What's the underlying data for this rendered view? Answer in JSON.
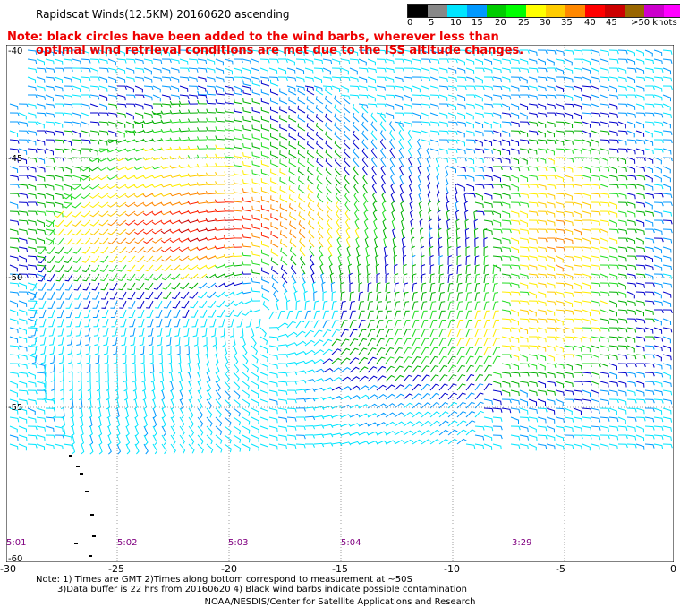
{
  "title": "Rapidscat Winds(12.5KM) 20160620 ascending",
  "note_lines": [
    "Note: black circles have been added to the wind barbs, wherever less than",
    "optimal wind retrieval conditions are met due to the ISS altitude changes."
  ],
  "colorbar": {
    "colors": [
      "#000000",
      "#888888",
      "#00e5ff",
      "#0099ff",
      "#00cc00",
      "#00ff00",
      "#ffff00",
      "#ffcc00",
      "#ff8800",
      "#ff0000",
      "#cc0000",
      "#996600",
      "#cc00cc",
      "#ff00ff",
      "#8800cc"
    ],
    "labels": [
      "0",
      "5",
      "10",
      "15",
      "20",
      "25",
      "30",
      "35",
      "40",
      "45",
      ">50 knots"
    ]
  },
  "lat_labels": [
    "-40",
    "-45",
    "-50",
    "-55",
    "-60"
  ],
  "lon_labels": [
    "-30",
    "-25",
    "-20",
    "-15",
    "-10",
    "-5",
    "0"
  ],
  "time_labels": [
    "5:01",
    "5:02",
    "5:03",
    "5:04",
    "3:29"
  ],
  "footnote_lines": [
    "Note: 1) Times are GMT 2)Times along bottom correspond to measurement at ~50S",
    "3)Data buffer is 22 hrs from 20160620 4) Black wind barbs indicate possible contamination"
  ],
  "credit": "NOAA/NESDIS/Center for Satellite Applications and Research"
}
